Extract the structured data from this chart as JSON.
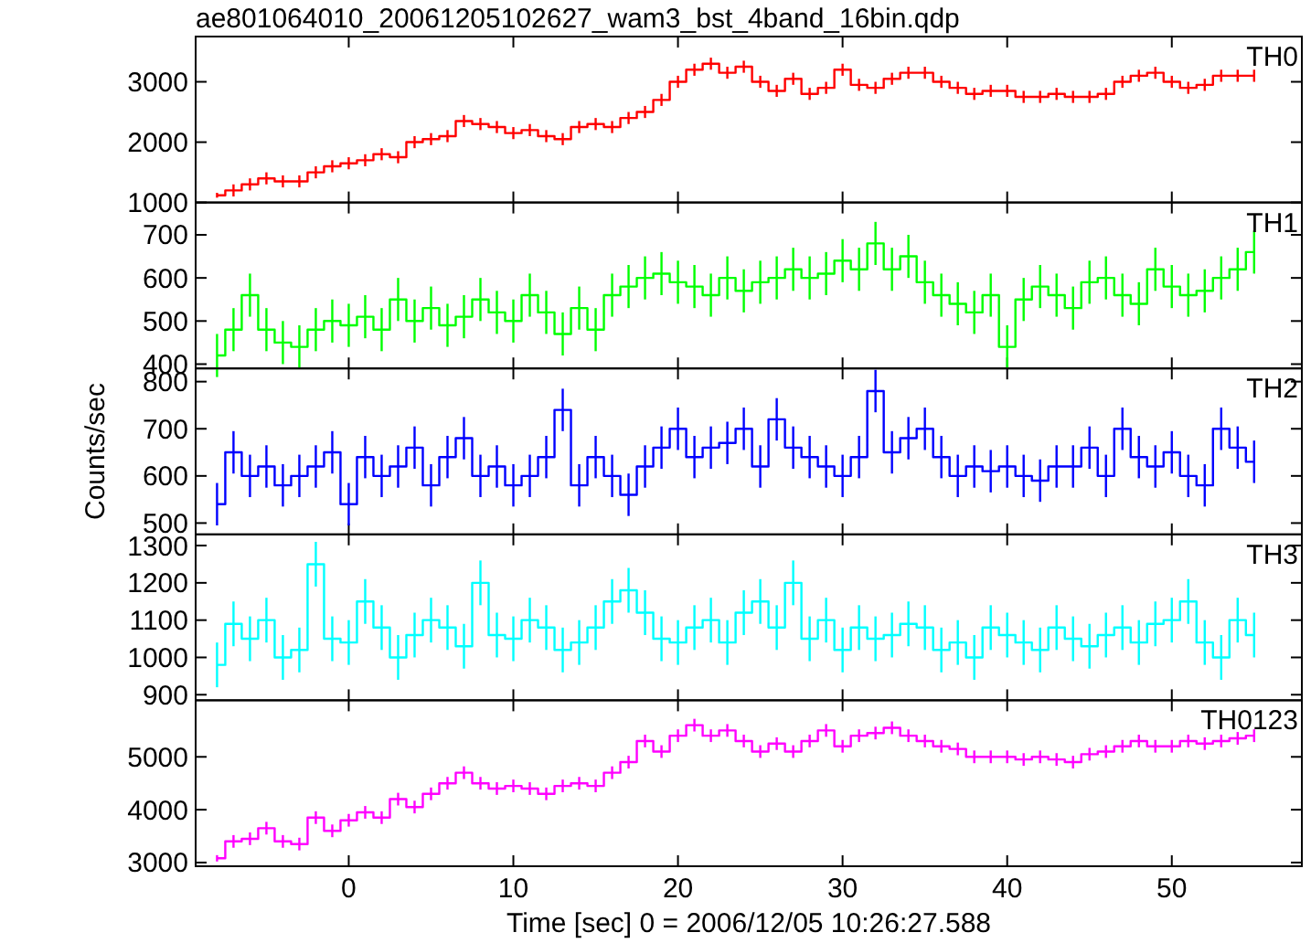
{
  "chart_data": [
    {
      "type": "step",
      "title": "ae801064010_20061205102627_wam3_bst_4band_16bin.qdp",
      "x": [
        -8,
        -7,
        -6,
        -5,
        -4,
        -3,
        -2,
        -1,
        0,
        1,
        2,
        3,
        4,
        5,
        6,
        7,
        8,
        9,
        10,
        11,
        12,
        13,
        14,
        15,
        16,
        17,
        18,
        19,
        20,
        21,
        22,
        23,
        24,
        25,
        26,
        27,
        28,
        29,
        30,
        31,
        32,
        33,
        34,
        35,
        36,
        37,
        38,
        39,
        40,
        41,
        42,
        43,
        44,
        45,
        46,
        47,
        48,
        49,
        50,
        51,
        52,
        53,
        54,
        55
      ],
      "xlim": [
        -9.3,
        57.9
      ],
      "xticks": [
        0,
        10,
        20,
        30,
        40,
        50
      ],
      "ylim": [
        1000,
        3750
      ],
      "yticks": [
        1000,
        2000,
        3000
      ],
      "tick_labels": "y",
      "series": [
        {
          "name": "TH0",
          "color": "#ff0000",
          "values": [
            1120,
            1200,
            1300,
            1400,
            1350,
            1350,
            1500,
            1600,
            1650,
            1700,
            1800,
            1750,
            2000,
            2050,
            2100,
            2350,
            2300,
            2250,
            2150,
            2200,
            2100,
            2050,
            2250,
            2300,
            2250,
            2400,
            2500,
            2700,
            3000,
            3200,
            3300,
            3150,
            3250,
            3000,
            2850,
            3050,
            2800,
            2900,
            3200,
            2950,
            2900,
            3050,
            3150,
            3150,
            3000,
            2900,
            2800,
            2850,
            2850,
            2750,
            2750,
            2800,
            2750,
            2750,
            2800,
            3000,
            3100,
            3150,
            3000,
            2900,
            2950,
            3100,
            3100,
            3100
          ],
          "errors": [
            40,
            100,
            100,
            100,
            100,
            100,
            100,
            100,
            100,
            100,
            100,
            100,
            100,
            100,
            100,
            100,
            100,
            100,
            100,
            100,
            100,
            100,
            100,
            100,
            100,
            100,
            100,
            100,
            100,
            100,
            100,
            100,
            100,
            100,
            100,
            100,
            100,
            100,
            100,
            100,
            100,
            100,
            100,
            100,
            100,
            100,
            100,
            100,
            100,
            100,
            100,
            100,
            100,
            100,
            100,
            100,
            100,
            100,
            100,
            100,
            100,
            100,
            100,
            100
          ]
        }
      ]
    },
    {
      "type": "step",
      "x": [
        -8,
        -7,
        -6,
        -5,
        -4,
        -3,
        -2,
        -1,
        0,
        1,
        2,
        3,
        4,
        5,
        6,
        7,
        8,
        9,
        10,
        11,
        12,
        13,
        14,
        15,
        16,
        17,
        18,
        19,
        20,
        21,
        22,
        23,
        24,
        25,
        26,
        27,
        28,
        29,
        30,
        31,
        32,
        33,
        34,
        35,
        36,
        37,
        38,
        39,
        40,
        41,
        42,
        43,
        44,
        45,
        46,
        47,
        48,
        49,
        50,
        51,
        52,
        53,
        54,
        55
      ],
      "xlim": [
        -9.3,
        57.9
      ],
      "xticks": [
        0,
        10,
        20,
        30,
        40,
        50
      ],
      "ylim": [
        390,
        775
      ],
      "yticks": [
        400,
        500,
        600,
        700
      ],
      "tick_labels": "y",
      "series": [
        {
          "name": "TH1",
          "color": "#00ff00",
          "values": [
            420,
            480,
            560,
            480,
            450,
            440,
            480,
            500,
            490,
            510,
            480,
            550,
            500,
            530,
            490,
            510,
            550,
            520,
            500,
            560,
            520,
            470,
            530,
            480,
            560,
            580,
            600,
            610,
            590,
            580,
            560,
            600,
            570,
            590,
            600,
            620,
            600,
            610,
            640,
            620,
            680,
            620,
            650,
            590,
            560,
            540,
            520,
            560,
            440,
            550,
            580,
            560,
            530,
            590,
            600,
            560,
            540,
            620,
            580,
            560,
            570,
            600,
            620,
            660
          ],
          "errors": [
            50,
            50,
            50,
            50,
            50,
            50,
            50,
            50,
            50,
            50,
            50,
            50,
            50,
            50,
            50,
            50,
            50,
            50,
            50,
            50,
            50,
            50,
            50,
            50,
            50,
            50,
            50,
            50,
            50,
            50,
            50,
            50,
            50,
            50,
            50,
            50,
            50,
            50,
            50,
            50,
            50,
            50,
            50,
            50,
            50,
            50,
            50,
            50,
            50,
            50,
            50,
            50,
            50,
            50,
            50,
            50,
            50,
            50,
            50,
            50,
            50,
            50,
            50,
            50
          ]
        }
      ]
    },
    {
      "type": "step",
      "ylabel": "Counts/sec",
      "x": [
        -8,
        -7,
        -6,
        -5,
        -4,
        -3,
        -2,
        -1,
        0,
        1,
        2,
        3,
        4,
        5,
        6,
        7,
        8,
        9,
        10,
        11,
        12,
        13,
        14,
        15,
        16,
        17,
        18,
        19,
        20,
        21,
        22,
        23,
        24,
        25,
        26,
        27,
        28,
        29,
        30,
        31,
        32,
        33,
        34,
        35,
        36,
        37,
        38,
        39,
        40,
        41,
        42,
        43,
        44,
        45,
        46,
        47,
        48,
        49,
        50,
        51,
        52,
        53,
        54,
        55
      ],
      "xlim": [
        -9.3,
        57.9
      ],
      "xticks": [
        0,
        10,
        20,
        30,
        40,
        50
      ],
      "ylim": [
        476,
        828
      ],
      "yticks": [
        500,
        600,
        700,
        800
      ],
      "tick_labels": "y",
      "series": [
        {
          "name": "TH2",
          "color": "#0000ff",
          "values": [
            540,
            650,
            600,
            620,
            580,
            600,
            620,
            650,
            540,
            640,
            600,
            620,
            660,
            580,
            640,
            680,
            600,
            620,
            580,
            600,
            640,
            740,
            580,
            640,
            600,
            560,
            620,
            660,
            700,
            640,
            660,
            670,
            700,
            620,
            720,
            660,
            640,
            620,
            600,
            640,
            780,
            650,
            680,
            700,
            640,
            600,
            620,
            610,
            620,
            600,
            590,
            620,
            620,
            660,
            600,
            700,
            640,
            620,
            650,
            600,
            580,
            700,
            660,
            630
          ],
          "errors": [
            45,
            45,
            45,
            45,
            45,
            45,
            45,
            45,
            45,
            45,
            45,
            45,
            45,
            45,
            45,
            45,
            45,
            45,
            45,
            45,
            45,
            45,
            45,
            45,
            45,
            45,
            45,
            45,
            45,
            45,
            45,
            45,
            45,
            45,
            45,
            45,
            45,
            45,
            45,
            45,
            45,
            45,
            45,
            45,
            45,
            45,
            45,
            45,
            45,
            45,
            45,
            45,
            45,
            45,
            45,
            45,
            45,
            45,
            45,
            45,
            45,
            45,
            45,
            45
          ]
        }
      ]
    },
    {
      "type": "step",
      "x": [
        -8,
        -7,
        -6,
        -5,
        -4,
        -3,
        -2,
        -1,
        0,
        1,
        2,
        3,
        4,
        5,
        6,
        7,
        8,
        9,
        10,
        11,
        12,
        13,
        14,
        15,
        16,
        17,
        18,
        19,
        20,
        21,
        22,
        23,
        24,
        25,
        26,
        27,
        28,
        29,
        30,
        31,
        32,
        33,
        34,
        35,
        36,
        37,
        38,
        39,
        40,
        41,
        42,
        43,
        44,
        45,
        46,
        47,
        48,
        49,
        50,
        51,
        52,
        53,
        54,
        55
      ],
      "xlim": [
        -9.3,
        57.9
      ],
      "xticks": [
        0,
        10,
        20,
        30,
        40,
        50
      ],
      "ylim": [
        885,
        1330
      ],
      "yticks": [
        900,
        1000,
        1100,
        1200,
        1300
      ],
      "tick_labels": "y",
      "series": [
        {
          "name": "TH3",
          "color": "#00ffff",
          "values": [
            980,
            1090,
            1050,
            1100,
            1000,
            1020,
            1250,
            1050,
            1040,
            1150,
            1080,
            1000,
            1060,
            1100,
            1080,
            1030,
            1200,
            1060,
            1050,
            1100,
            1080,
            1020,
            1040,
            1080,
            1150,
            1180,
            1120,
            1050,
            1040,
            1080,
            1100,
            1040,
            1120,
            1150,
            1080,
            1200,
            1050,
            1100,
            1020,
            1080,
            1050,
            1060,
            1090,
            1080,
            1020,
            1040,
            1000,
            1080,
            1060,
            1040,
            1020,
            1080,
            1050,
            1030,
            1060,
            1080,
            1040,
            1090,
            1100,
            1150,
            1040,
            1000,
            1100,
            1060
          ],
          "errors": [
            60,
            60,
            60,
            60,
            60,
            60,
            60,
            60,
            60,
            60,
            60,
            60,
            60,
            60,
            60,
            60,
            60,
            60,
            60,
            60,
            60,
            60,
            60,
            60,
            60,
            60,
            60,
            60,
            60,
            60,
            60,
            60,
            60,
            60,
            60,
            60,
            60,
            60,
            60,
            60,
            60,
            60,
            60,
            60,
            60,
            60,
            60,
            60,
            60,
            60,
            60,
            60,
            60,
            60,
            60,
            60,
            60,
            60,
            60,
            60,
            60,
            60,
            60,
            60
          ]
        }
      ]
    },
    {
      "type": "step",
      "xlabel": "Time [sec] 0 = 2006/12/05 10:26:27.588",
      "x": [
        -8,
        -7,
        -6,
        -5,
        -4,
        -3,
        -2,
        -1,
        0,
        1,
        2,
        3,
        4,
        5,
        6,
        7,
        8,
        9,
        10,
        11,
        12,
        13,
        14,
        15,
        16,
        17,
        18,
        19,
        20,
        21,
        22,
        23,
        24,
        25,
        26,
        27,
        28,
        29,
        30,
        31,
        32,
        33,
        34,
        35,
        36,
        37,
        38,
        39,
        40,
        41,
        42,
        43,
        44,
        45,
        46,
        47,
        48,
        49,
        50,
        51,
        52,
        53,
        54,
        55
      ],
      "xlim": [
        -9.3,
        57.9
      ],
      "xticks": [
        0,
        10,
        20,
        30,
        40,
        50
      ],
      "ylim": [
        2930,
        6070
      ],
      "yticks": [
        3000,
        4000,
        5000
      ],
      "series": [
        {
          "name": "TH0123",
          "color": "#ff00ff",
          "values": [
            3080,
            3400,
            3450,
            3650,
            3400,
            3350,
            3850,
            3600,
            3800,
            3950,
            3850,
            4200,
            4050,
            4300,
            4500,
            4700,
            4500,
            4400,
            4450,
            4400,
            4300,
            4450,
            4500,
            4450,
            4700,
            4900,
            5300,
            5100,
            5400,
            5600,
            5400,
            5500,
            5300,
            5100,
            5250,
            5100,
            5300,
            5500,
            5200,
            5400,
            5450,
            5550,
            5400,
            5300,
            5200,
            5150,
            5000,
            5000,
            5000,
            4950,
            5000,
            4950,
            4900,
            5050,
            5100,
            5200,
            5300,
            5200,
            5200,
            5300,
            5250,
            5300,
            5350,
            5400
          ],
          "errors": [
            60,
            120,
            120,
            120,
            120,
            120,
            120,
            120,
            120,
            120,
            120,
            120,
            120,
            120,
            120,
            120,
            120,
            120,
            120,
            120,
            120,
            120,
            120,
            120,
            120,
            120,
            120,
            120,
            120,
            120,
            120,
            120,
            120,
            120,
            120,
            120,
            120,
            120,
            120,
            120,
            120,
            120,
            120,
            120,
            120,
            120,
            120,
            120,
            120,
            120,
            120,
            120,
            120,
            120,
            120,
            120,
            120,
            120,
            120,
            120,
            120,
            120,
            120,
            120
          ]
        }
      ]
    }
  ]
}
